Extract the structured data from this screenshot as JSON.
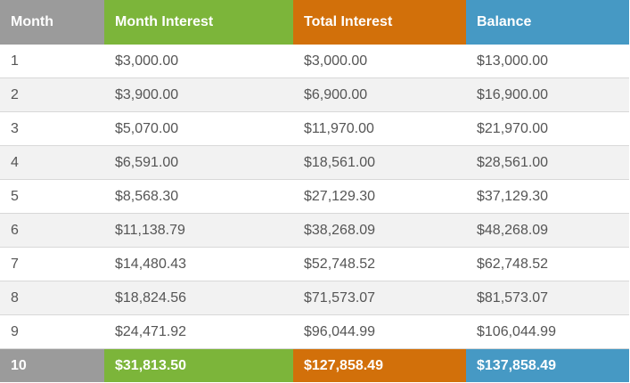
{
  "colors": {
    "month": "#9b9b9b",
    "month_interest": "#7cb53a",
    "total_interest": "#d2700a",
    "balance": "#4699c4"
  },
  "table": {
    "headers": [
      "Month",
      "Month Interest",
      "Total Interest",
      "Balance"
    ],
    "rows": [
      [
        "1",
        "$3,000.00",
        "$3,000.00",
        "$13,000.00"
      ],
      [
        "2",
        "$3,900.00",
        "$6,900.00",
        "$16,900.00"
      ],
      [
        "3",
        "$5,070.00",
        "$11,970.00",
        "$21,970.00"
      ],
      [
        "4",
        "$6,591.00",
        "$18,561.00",
        "$28,561.00"
      ],
      [
        "5",
        "$8,568.30",
        "$27,129.30",
        "$37,129.30"
      ],
      [
        "6",
        "$11,138.79",
        "$38,268.09",
        "$48,268.09"
      ],
      [
        "7",
        "$14,480.43",
        "$52,748.52",
        "$62,748.52"
      ],
      [
        "8",
        "$18,824.56",
        "$71,573.07",
        "$81,573.07"
      ],
      [
        "9",
        "$24,471.92",
        "$96,044.99",
        "$106,044.99"
      ]
    ],
    "footer": [
      "10",
      "$31,813.50",
      "$127,858.49",
      "$137,858.49"
    ]
  }
}
